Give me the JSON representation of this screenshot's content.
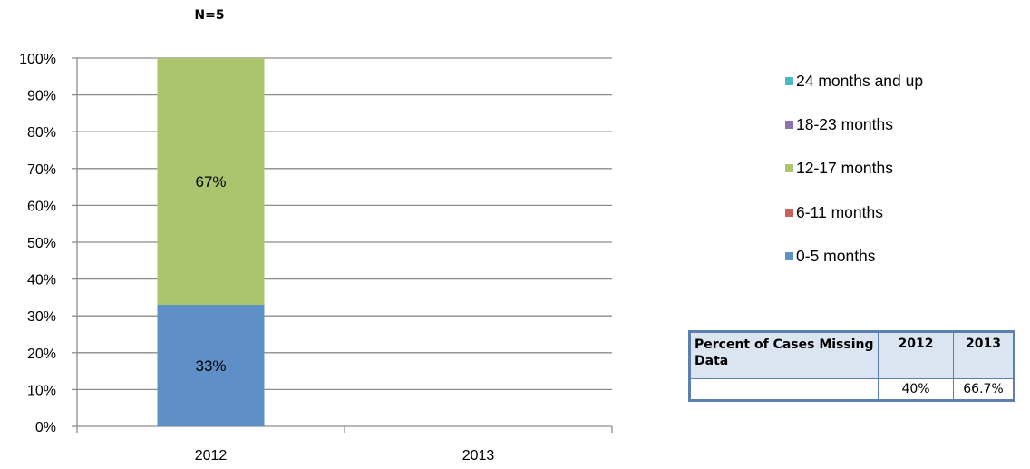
{
  "chart_data": {
    "type": "bar",
    "stacked": true,
    "subtitle": "N=5",
    "categories": [
      "2012",
      "2013"
    ],
    "y_ticks": [
      "0%",
      "10%",
      "20%",
      "30%",
      "40%",
      "50%",
      "60%",
      "70%",
      "80%",
      "90%",
      "100%"
    ],
    "ylim": [
      0,
      100
    ],
    "grid": true,
    "legend_position": "right",
    "series": [
      {
        "name": "0-5 months",
        "color": "#5e8fc7",
        "values": [
          33,
          0
        ],
        "labels": [
          "33%",
          ""
        ]
      },
      {
        "name": "6-11 months",
        "color": "#c9605a",
        "values": [
          0,
          0
        ],
        "labels": [
          "",
          ""
        ]
      },
      {
        "name": "12-17 months",
        "color": "#aac56e",
        "values": [
          67,
          0
        ],
        "labels": [
          "67%",
          ""
        ]
      },
      {
        "name": "18-23 months",
        "color": "#8b72ad",
        "values": [
          0,
          0
        ],
        "labels": [
          "",
          ""
        ]
      },
      {
        "name": "24 months and up",
        "color": "#4bb7ca",
        "values": [
          0,
          0
        ],
        "labels": [
          "",
          ""
        ]
      }
    ]
  },
  "legend": [
    {
      "label": "24 months and up",
      "color": "#4bb7ca"
    },
    {
      "label": "18-23 months",
      "color": "#8b72ad"
    },
    {
      "label": "12-17 months",
      "color": "#aac56e"
    },
    {
      "label": "6-11 months",
      "color": "#c9605a"
    },
    {
      "label": "0-5 months",
      "color": "#5e8fc7"
    }
  ],
  "missing_table": {
    "header": [
      "Percent of Cases Missing Data",
      "2012",
      "2013"
    ],
    "row": [
      "",
      "40%",
      "66.7%"
    ]
  }
}
